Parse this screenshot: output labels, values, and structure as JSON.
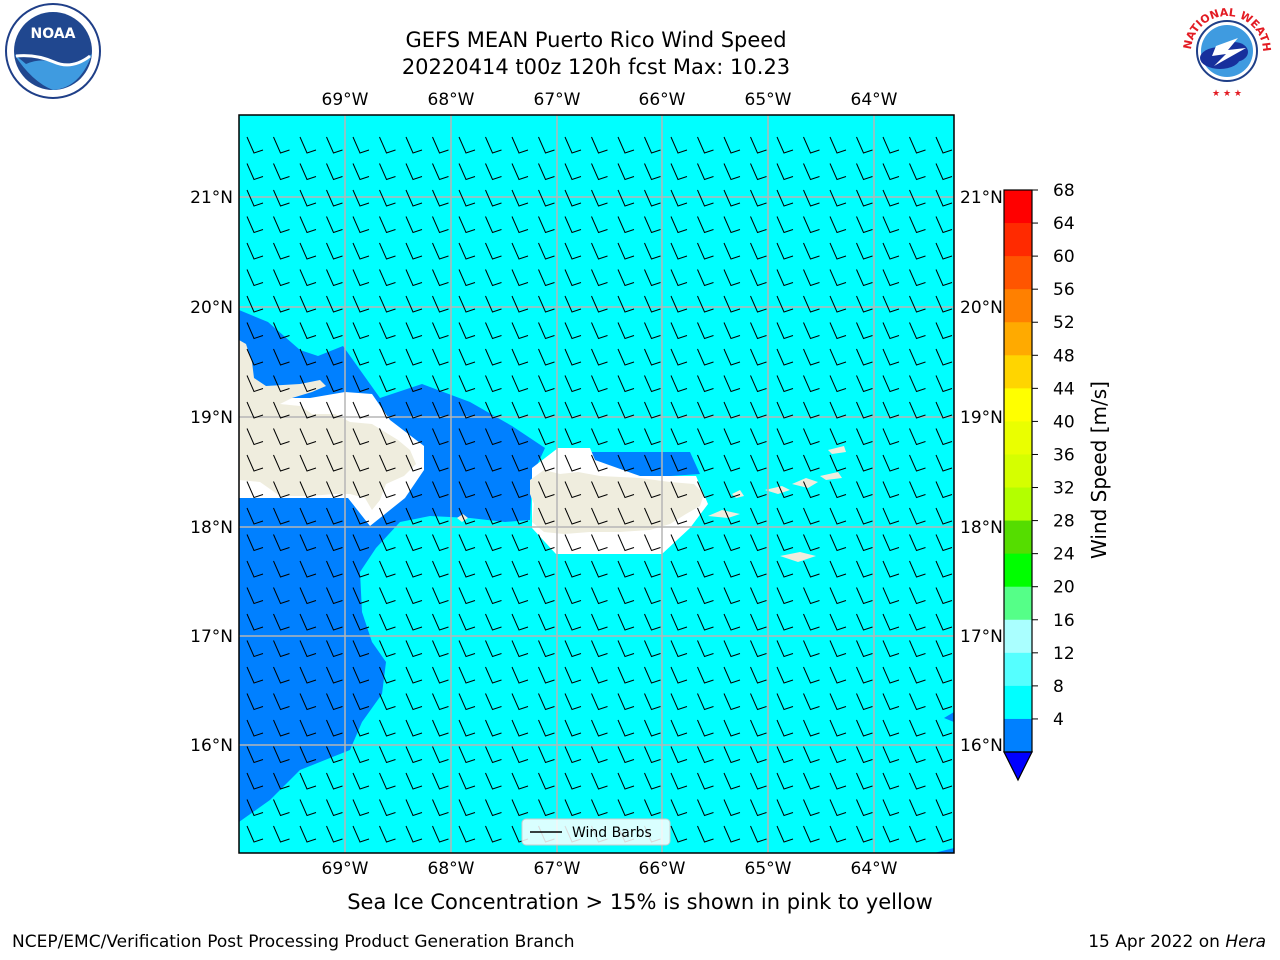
{
  "title": {
    "line1": "GEFS MEAN Puerto Rico Wind Speed",
    "line2": "20220414 t00z 120h fcst   Max: 10.23"
  },
  "map": {
    "lon_labels": [
      "69°W",
      "68°W",
      "67°W",
      "66°W",
      "65°W",
      "64°W"
    ],
    "lat_labels": [
      "21°N",
      "20°N",
      "19°N",
      "18°N",
      "17°N",
      "16°N"
    ],
    "legend_label": "Wind Barbs",
    "colors": {
      "ocean_light": "#00ffff",
      "ocean_dark": "#0080ff",
      "land": "#efedde",
      "coast": "#000000",
      "grid": "#b5b5b5"
    }
  },
  "colorbar": {
    "label": "Wind Speed [m/s]",
    "ticks": [
      "68",
      "64",
      "60",
      "56",
      "52",
      "48",
      "44",
      "40",
      "36",
      "32",
      "28",
      "24",
      "20",
      "16",
      "12",
      "8",
      "4"
    ],
    "colors": [
      "#ff0000",
      "#ff2a00",
      "#ff5500",
      "#ff8000",
      "#ffaa00",
      "#ffd500",
      "#ffff00",
      "#eaff00",
      "#d5ff00",
      "#b3ff00",
      "#55dd00",
      "#00ff00",
      "#55ff88",
      "#aaffff",
      "#55ffff",
      "#00ffff",
      "#0080ff"
    ],
    "under_color": "#0000ff"
  },
  "note": "Sea Ice Concentration > 15% is shown in pink to yellow",
  "footer": {
    "left": "NCEP/EMC/Verification Post Processing Product Generation Branch",
    "right_prefix": "15 Apr 2022 on",
    "right_host": "Hera"
  },
  "logos": {
    "noaa_text": "NOAA",
    "nws_text": "NATIONAL WEATHER SERVICE"
  }
}
